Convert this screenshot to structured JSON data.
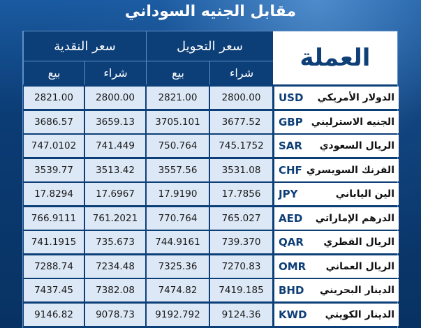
{
  "title": "مقابل الجنيه السوداني",
  "headers": {
    "currency": "العملة",
    "transfer": "سعر التحويل",
    "cash": "سعر النقدية",
    "buy": "شراء",
    "sell": "بيع"
  },
  "rows": [
    {
      "name": "الدولار الأمريكي",
      "code": "USD",
      "t_buy": "2800.00",
      "t_sell": "2821.00",
      "c_buy": "2800.00",
      "c_sell": "2821.00"
    },
    {
      "name": "الجنيه الاسترليني",
      "code": "GBP",
      "t_buy": "3677.52",
      "t_sell": "3705.101",
      "c_buy": "3659.13",
      "c_sell": "3686.57"
    },
    {
      "name": "الريال السعودي",
      "code": "SAR",
      "t_buy": "745.1752",
      "t_sell": "750.764",
      "c_buy": "741.449",
      "c_sell": "747.0102"
    },
    {
      "name": "الفرنك السويسري",
      "code": "CHF",
      "t_buy": "3531.08",
      "t_sell": "3557.56",
      "c_buy": "3513.42",
      "c_sell": "3539.77"
    },
    {
      "name": "الين الياباني",
      "code": "JPY",
      "t_buy": "17.7856",
      "t_sell": "17.9190",
      "c_buy": "17.6967",
      "c_sell": "17.8294"
    },
    {
      "name": "الدرهم الإماراتي",
      "code": "AED",
      "t_buy": "765.027",
      "t_sell": "770.764",
      "c_buy": "761.2021",
      "c_sell": "766.9111"
    },
    {
      "name": "الريال القطري",
      "code": "QAR",
      "t_buy": "739.370",
      "t_sell": "744.9161",
      "c_buy": "735.673",
      "c_sell": "741.1915"
    },
    {
      "name": "الريال العماني",
      "code": "OMR",
      "t_buy": "7270.83",
      "t_sell": "7325.36",
      "c_buy": "7234.48",
      "c_sell": "7288.74"
    },
    {
      "name": "الدينار البحريني",
      "code": "BHD",
      "t_buy": "7419.185",
      "t_sell": "7474.82",
      "c_buy": "7382.08",
      "c_sell": "7437.45"
    },
    {
      "name": "الدينار الكويتي",
      "code": "KWD",
      "t_buy": "9124.36",
      "t_sell": "9192.792",
      "c_buy": "9078.73",
      "c_sell": "9146.82"
    }
  ]
}
